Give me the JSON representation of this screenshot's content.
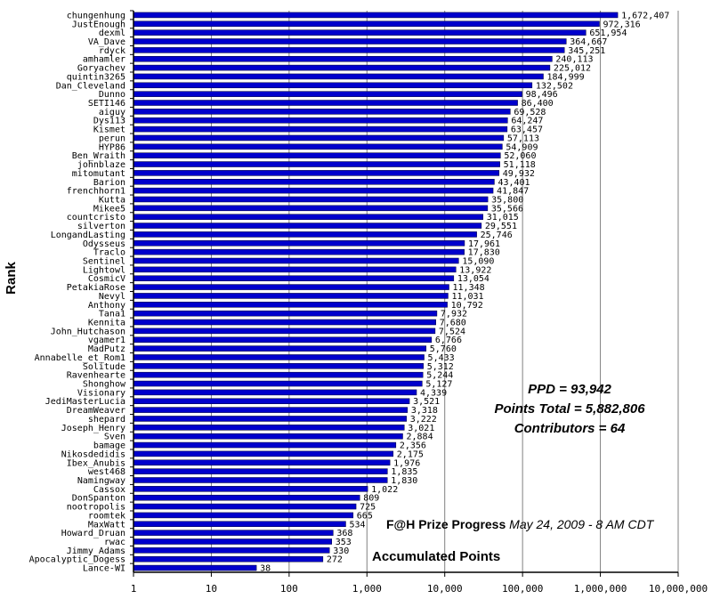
{
  "chart_data": {
    "type": "bar",
    "orientation": "horizontal",
    "scale": "log",
    "ylabel": "Rank",
    "xlabel": "Accumulated Points",
    "xlim": [
      1,
      10000000
    ],
    "x_ticks": [
      "1",
      "10",
      "100",
      "1,000",
      "10,000",
      "100,000",
      "1,000,000",
      "10,000,000"
    ],
    "grid": "vertical",
    "bar_color": "#0000cc",
    "categories": [
      "chungenhung",
      "JustEnough",
      "dexml",
      "VA_Dave",
      "rdyck",
      "amhamler",
      "Goryachev",
      "quintin3265",
      "Dan_Cleveland",
      "Dunno",
      "SETI146",
      "aiguy",
      "Dys113",
      "Kismet",
      "perun",
      "HYP86",
      "Ben_Wraith",
      "johnblaze",
      "mitomutant",
      "Barion",
      "frenchhorn1",
      "Kutta",
      "Mikee5",
      "countcristo",
      "silverton",
      "LongandLasting",
      "Odysseus",
      "Traclo",
      "Sentinel",
      "Lightowl",
      "CosmicV",
      "PetakiaRose",
      "Nevyl",
      "Anthony",
      "Tana1",
      "Kennita",
      "John_Hutchason",
      "vgamer1",
      "MadPutz",
      "Annabelle_et_Rom1",
      "Solitude",
      "Ravenhearte",
      "Shonghow",
      "Visionary",
      "JediMasterLucia",
      "DreamWeaver",
      "shepard",
      "Joseph_Henry",
      "Sven",
      "bamage",
      "Nikosdedidis",
      "Ibex_Anubis",
      "west468",
      "Namingway",
      "Cassox",
      "DonSpanton",
      "nootropolis",
      "roomtek",
      "MaxWatt",
      "Howard_Druan",
      "rwac",
      "Jimmy_Adams",
      "Apocalyptic_Dogess",
      "Lance-WI"
    ],
    "values": [
      1672407,
      972316,
      651954,
      364667,
      345251,
      240113,
      225012,
      184999,
      132502,
      98496,
      86400,
      69528,
      64247,
      63457,
      57113,
      54909,
      52060,
      51118,
      49932,
      43401,
      41847,
      35800,
      35566,
      31015,
      29551,
      25746,
      17961,
      17830,
      15090,
      13922,
      13054,
      11348,
      11031,
      10792,
      7932,
      7680,
      7524,
      6766,
      5760,
      5433,
      5312,
      5244,
      5127,
      4339,
      3521,
      3318,
      3222,
      3021,
      2884,
      2356,
      2175,
      1976,
      1835,
      1830,
      1022,
      809,
      725,
      665,
      534,
      368,
      353,
      330,
      272,
      38
    ],
    "value_labels": [
      "1,672,407",
      "972,316",
      "651,954",
      "364,667",
      "345,251",
      "240,113",
      "225,012",
      "184,999",
      "132,502",
      "98,496",
      "86,400",
      "69,528",
      "64,247",
      "63,457",
      "57,113",
      "54,909",
      "52,060",
      "51,118",
      "49,932",
      "43,401",
      "41,847",
      "35,800",
      "35,566",
      "31,015",
      "29,551",
      "25,746",
      "17,961",
      "17,830",
      "15,090",
      "13,922",
      "13,054",
      "11,348",
      "11,031",
      "10,792",
      "7,932",
      "7,680",
      "7,524",
      "6,766",
      "5,760",
      "5,433",
      "5,312",
      "5,244",
      "5,127",
      "4,339",
      "3,521",
      "3,318",
      "3,222",
      "3,021",
      "2,884",
      "2,356",
      "2,175",
      "1,976",
      "1,835",
      "1,830",
      "1,022",
      "809",
      "725",
      "665",
      "534",
      "368",
      "353",
      "330",
      "272",
      "38"
    ]
  },
  "annotations": {
    "ppd": "PPD = 93,942",
    "points_total": "Points Total = 5,882,806",
    "contributors": "Contributors = 64",
    "progress_title": "F@H Prize Progress",
    "progress_date": "May 24, 2009 - 8 AM CDT",
    "accumulated": "Accumulated Points"
  }
}
